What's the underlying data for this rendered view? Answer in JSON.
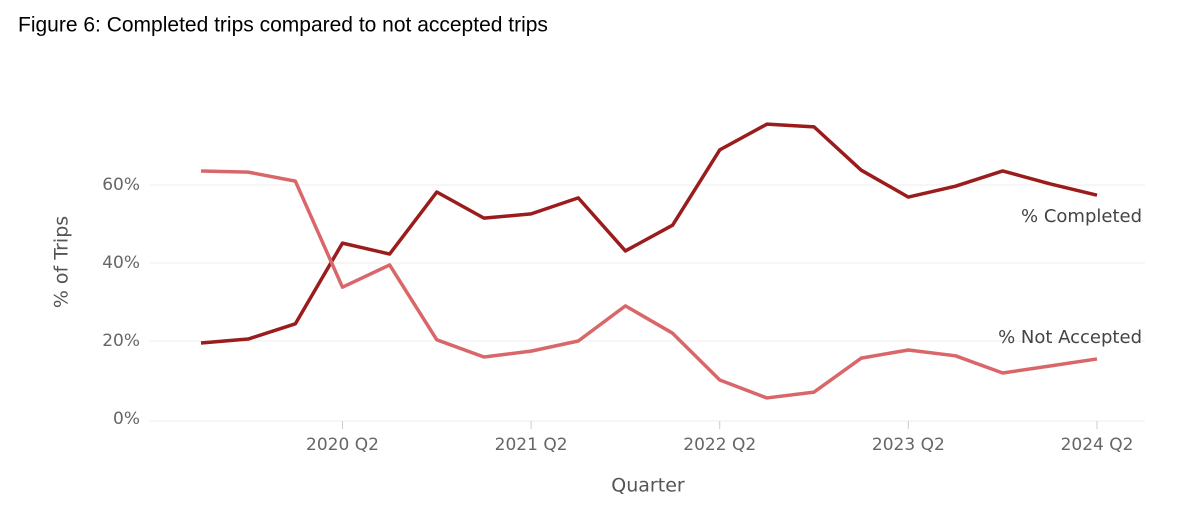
{
  "chart_data": {
    "type": "line",
    "title": "Figure 6: Completed trips compared to not accepted trips",
    "x_label": "Quarter",
    "y_label": "% of Trips",
    "categories": [
      null,
      null,
      null,
      "2020 Q2",
      null,
      null,
      null,
      "2021 Q2",
      null,
      null,
      null,
      "2022 Q2",
      null,
      null,
      null,
      "2023 Q2",
      null,
      null,
      null,
      "2024 Q2"
    ],
    "series": [
      {
        "name": "% Completed",
        "color": "#9b1c1c",
        "values": [
          19.5,
          20.5,
          24.4,
          45.1,
          42.3,
          58.2,
          51.5,
          52.6,
          56.7,
          43.1,
          49.7,
          69,
          75.6,
          74.9,
          63.8,
          56.9,
          59.7,
          63.6,
          60.3,
          57.4
        ]
      },
      {
        "name": "% Not Accepted",
        "color": "#d9676a",
        "values": [
          63.6,
          63.3,
          61,
          33.8,
          39.5,
          20.3,
          15.9,
          17.4,
          20,
          29,
          22,
          10,
          5.4,
          6.9,
          15.6,
          17.7,
          16.2,
          11.8,
          13.6,
          15.4
        ]
      }
    ],
    "ylim": [
      0,
      80
    ],
    "yticks": [
      {
        "value": 0,
        "label": "0%"
      },
      {
        "value": 20,
        "label": "20%"
      },
      {
        "value": 40,
        "label": "40%"
      },
      {
        "value": 60,
        "label": "60%"
      }
    ],
    "grid": true
  }
}
